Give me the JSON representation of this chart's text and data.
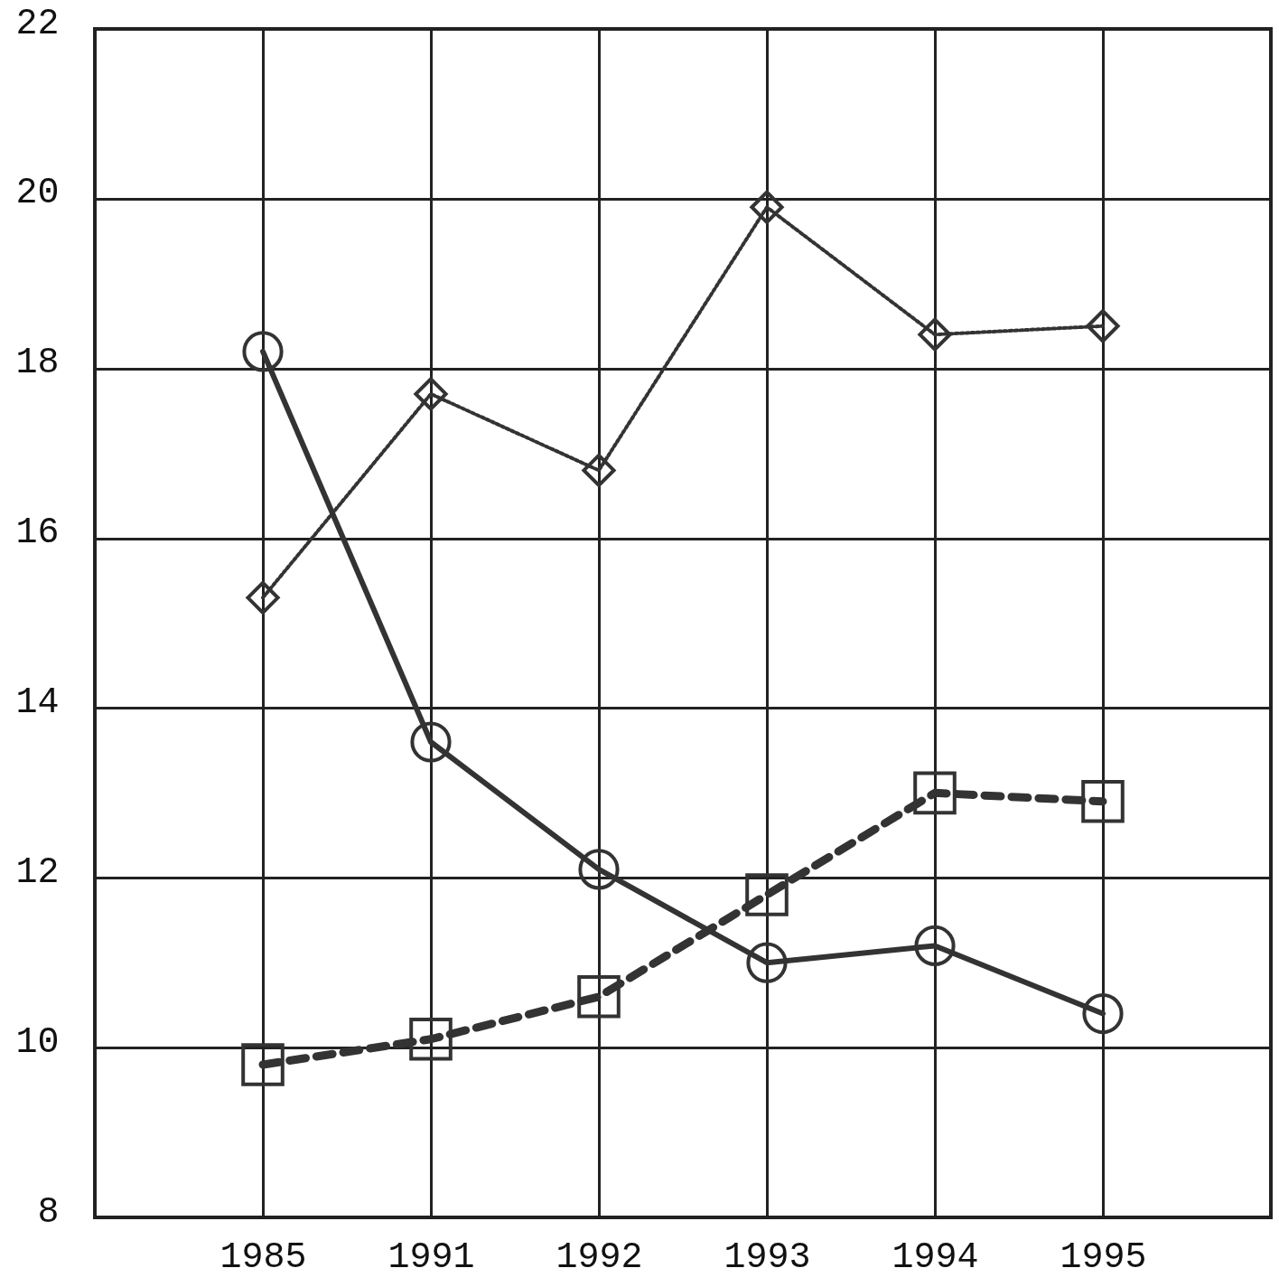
{
  "chart_data": {
    "type": "line",
    "categories": [
      "1985",
      "1991",
      "1992",
      "1993",
      "1994",
      "1995"
    ],
    "series": [
      {
        "color": "#333333",
        "marker": "circle",
        "line_style": "solid",
        "values": [
          18.2,
          13.6,
          12.1,
          11.0,
          11.2,
          10.4
        ]
      },
      {
        "color": "#333333",
        "marker": "diamond",
        "line_style": "dotted",
        "values": [
          15.3,
          17.7,
          16.8,
          19.9,
          18.4,
          18.5
        ]
      },
      {
        "color": "#333333",
        "marker": "square",
        "line_style": "dashed",
        "values": [
          9.8,
          10.1,
          10.6,
          11.8,
          13.0,
          12.9
        ]
      }
    ],
    "ylim": [
      8,
      22
    ],
    "yticks": [
      8,
      10,
      12,
      14,
      16,
      18,
      20,
      22
    ],
    "grid": true
  }
}
